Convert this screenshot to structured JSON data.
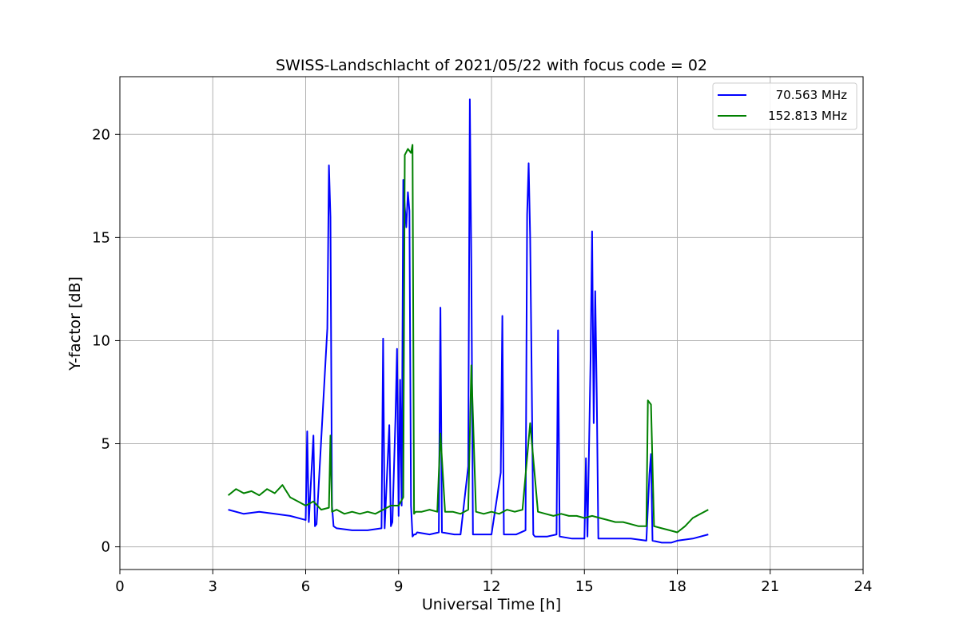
{
  "chart_data": {
    "type": "line",
    "title": "SWISS-Landschlacht of 2021/05/22 with focus code = 02",
    "xlabel": "Universal Time [h]",
    "ylabel": "Y-factor [dB]",
    "xlim": [
      0,
      24
    ],
    "ylim": [
      -1.1,
      22.8
    ],
    "xticks": [
      0,
      3,
      6,
      9,
      12,
      15,
      18,
      21,
      24
    ],
    "yticks": [
      0,
      5,
      10,
      15,
      20
    ],
    "grid": true,
    "legend_position": "top-right",
    "series": [
      {
        "name": "70.563 MHz",
        "color": "#0000ff",
        "x": [
          3.5,
          4.0,
          4.5,
          5.0,
          5.5,
          6.0,
          6.05,
          6.1,
          6.25,
          6.3,
          6.35,
          6.7,
          6.75,
          6.8,
          6.85,
          6.9,
          7.0,
          7.5,
          8.0,
          8.45,
          8.5,
          8.55,
          8.7,
          8.75,
          8.8,
          8.9,
          8.95,
          9.0,
          9.05,
          9.1,
          9.15,
          9.2,
          9.25,
          9.3,
          9.35,
          9.4,
          9.45,
          9.5,
          9.55,
          9.6,
          10.0,
          10.3,
          10.35,
          10.4,
          10.8,
          11.0,
          11.25,
          11.3,
          11.35,
          11.4,
          11.5,
          12.0,
          12.3,
          12.35,
          12.4,
          12.8,
          13.1,
          13.15,
          13.2,
          13.25,
          13.3,
          13.35,
          13.4,
          13.8,
          14.1,
          14.15,
          14.2,
          14.6,
          15.0,
          15.05,
          15.1,
          15.2,
          15.25,
          15.3,
          15.35,
          15.4,
          15.45,
          15.5,
          16.0,
          16.5,
          17.0,
          17.1,
          17.15,
          17.2,
          17.5,
          17.8,
          18.0,
          18.5,
          19.0
        ],
        "y": [
          1.8,
          1.6,
          1.7,
          1.6,
          1.5,
          1.3,
          5.6,
          1.2,
          5.4,
          1.0,
          1.1,
          10.6,
          18.5,
          16.0,
          2.0,
          1.0,
          0.9,
          0.8,
          0.8,
          0.9,
          10.1,
          0.9,
          5.9,
          1.0,
          1.2,
          6.3,
          9.6,
          1.5,
          8.1,
          2.0,
          17.8,
          16.5,
          15.5,
          17.2,
          16.3,
          2.0,
          0.5,
          0.6,
          0.6,
          0.7,
          0.6,
          0.7,
          11.6,
          0.7,
          0.6,
          0.6,
          3.9,
          21.7,
          13.6,
          0.6,
          0.6,
          0.6,
          3.6,
          11.2,
          0.6,
          0.6,
          0.8,
          16.1,
          18.6,
          15.0,
          7.9,
          0.6,
          0.5,
          0.5,
          0.6,
          10.5,
          0.5,
          0.4,
          0.4,
          4.3,
          0.5,
          9.1,
          15.3,
          6.0,
          12.4,
          7.1,
          0.4,
          0.4,
          0.4,
          0.4,
          0.3,
          3.5,
          4.5,
          0.3,
          0.2,
          0.2,
          0.3,
          0.4,
          0.6
        ]
      },
      {
        "name": "152.813 MHz",
        "color": "#008000",
        "x": [
          3.5,
          3.75,
          4.0,
          4.25,
          4.5,
          4.75,
          5.0,
          5.25,
          5.5,
          5.75,
          6.0,
          6.25,
          6.5,
          6.75,
          6.8,
          6.85,
          7.0,
          7.25,
          7.5,
          7.75,
          8.0,
          8.25,
          8.5,
          8.75,
          9.0,
          9.15,
          9.2,
          9.3,
          9.4,
          9.45,
          9.5,
          9.55,
          9.75,
          10.0,
          10.25,
          10.35,
          10.5,
          10.75,
          11.0,
          11.25,
          11.35,
          11.5,
          11.75,
          12.0,
          12.25,
          12.5,
          12.75,
          13.0,
          13.25,
          13.5,
          13.75,
          14.0,
          14.25,
          14.5,
          14.75,
          15.0,
          15.25,
          15.5,
          15.75,
          16.0,
          16.25,
          16.5,
          16.75,
          17.0,
          17.05,
          17.15,
          17.25,
          17.5,
          17.75,
          18.0,
          18.25,
          18.5,
          18.75,
          19.0
        ],
        "y": [
          2.5,
          2.8,
          2.6,
          2.7,
          2.5,
          2.8,
          2.6,
          3.0,
          2.4,
          2.2,
          2.0,
          2.2,
          1.8,
          1.9,
          5.4,
          1.7,
          1.8,
          1.6,
          1.7,
          1.6,
          1.7,
          1.6,
          1.8,
          2.0,
          2.0,
          2.4,
          19.0,
          19.3,
          19.1,
          19.5,
          1.6,
          1.7,
          1.7,
          1.8,
          1.7,
          5.5,
          1.7,
          1.7,
          1.6,
          1.8,
          8.8,
          1.7,
          1.6,
          1.7,
          1.6,
          1.8,
          1.7,
          1.8,
          6.0,
          1.7,
          1.6,
          1.5,
          1.6,
          1.5,
          1.5,
          1.4,
          1.5,
          1.4,
          1.3,
          1.2,
          1.2,
          1.1,
          1.0,
          1.0,
          7.1,
          6.9,
          1.0,
          0.9,
          0.8,
          0.7,
          1.0,
          1.4,
          1.6,
          1.8
        ]
      }
    ]
  }
}
